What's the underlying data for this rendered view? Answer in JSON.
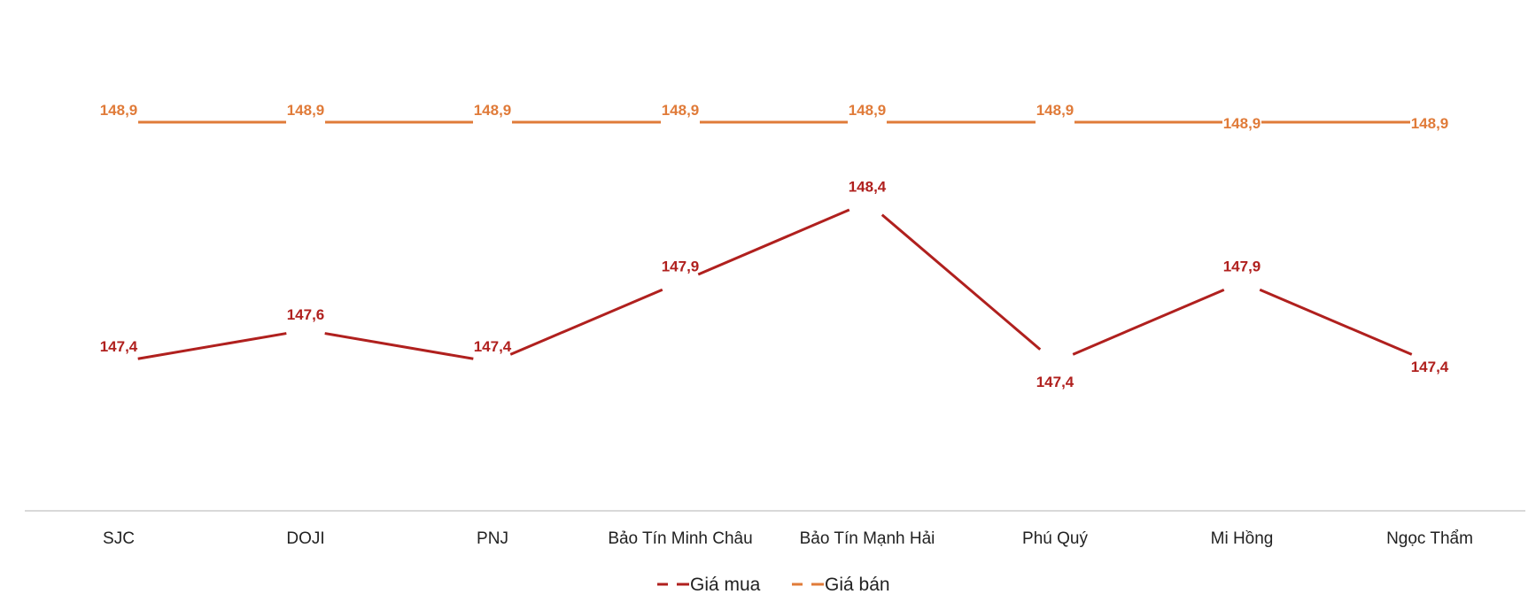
{
  "chart_data": {
    "type": "line",
    "title": "",
    "xlabel": "",
    "ylabel": "",
    "categories": [
      "SJC",
      "DOJI",
      "PNJ",
      "Bảo Tín Minh Châu",
      "Bảo Tín Mạnh Hải",
      "Phú Quý",
      "Mi Hồng",
      "Ngọc Thẩm"
    ],
    "series": [
      {
        "name": "Giá mua",
        "color": "#B0201E",
        "values": [
          147.4,
          147.6,
          147.4,
          147.9,
          148.4,
          147.4,
          147.9,
          147.4
        ],
        "labels": [
          "147,4",
          "147,6",
          "147,4",
          "147,9",
          "148,4",
          "147,4",
          "147,9",
          "147,4"
        ]
      },
      {
        "name": "Giá bán",
        "color": "#E07B39",
        "values": [
          148.9,
          148.9,
          148.9,
          148.9,
          148.9,
          148.9,
          148.9,
          148.9
        ],
        "labels": [
          "148,9",
          "148,9",
          "148,9",
          "148,9",
          "148,9",
          "148,9",
          "148,9",
          "148,9"
        ]
      }
    ],
    "grid": false,
    "legend_position": "bottom",
    "data_labels": true
  },
  "legend": {
    "items": [
      {
        "label": "Giá mua",
        "color": "#B0201E"
      },
      {
        "label": "Giá bán",
        "color": "#E07B39"
      }
    ]
  }
}
